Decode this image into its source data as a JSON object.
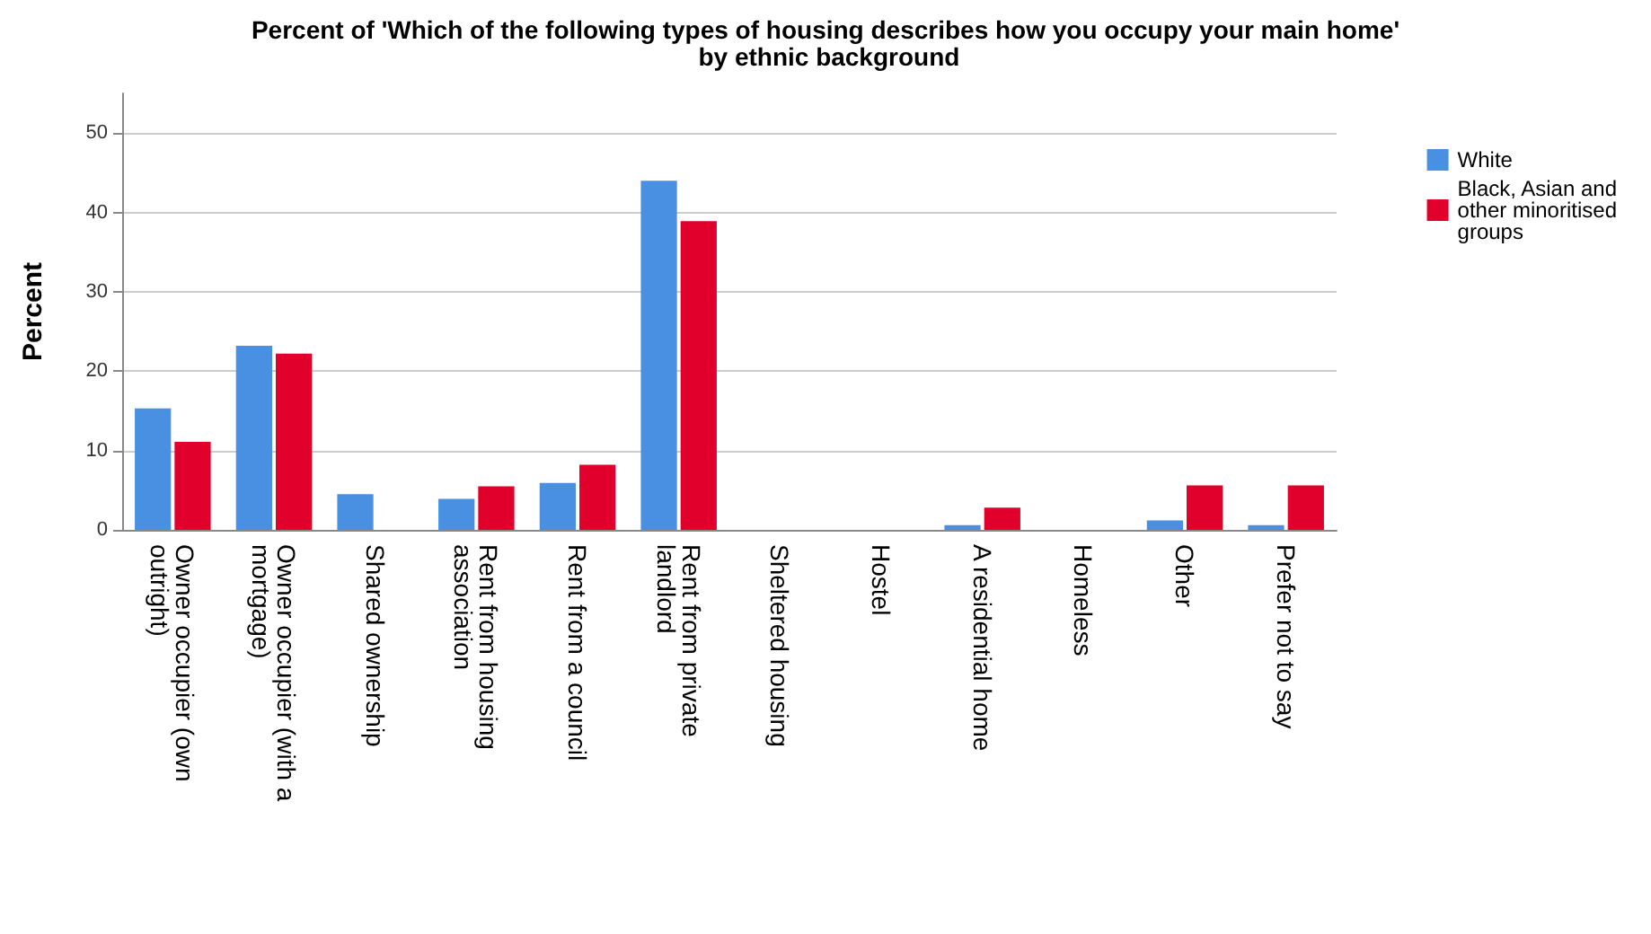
{
  "chart_data": {
    "type": "bar",
    "title": "Percent of 'Which of the following types of housing describes how you occupy your main home' by ethnic background",
    "ylabel": "Percent",
    "categories": [
      "Owner occupier (own outright)",
      "Owner occupier (with a mortgage)",
      "Shared ownership",
      "Rent from housing association",
      "Rent from a council",
      "Rent from private landlord",
      "Sheltered housing",
      "Hostel",
      "A residential home",
      "Homeless",
      "Other",
      "Prefer not to say"
    ],
    "series": [
      {
        "name": "White",
        "color": "#4a90e2",
        "values": [
          15.3,
          23.2,
          4.5,
          3.9,
          5.9,
          44.0,
          0,
          0,
          0.6,
          0,
          1.2,
          0.6
        ]
      },
      {
        "name": "Black, Asian and other minoritised groups",
        "color": "#e0002b",
        "values": [
          11.1,
          22.2,
          0,
          5.5,
          8.2,
          38.9,
          0,
          0,
          2.8,
          0,
          5.6,
          5.6
        ]
      }
    ],
    "ylim": [
      0,
      55
    ],
    "yticks": [
      0,
      10,
      20,
      30,
      40,
      50
    ],
    "grid": "y",
    "legend": "right"
  }
}
